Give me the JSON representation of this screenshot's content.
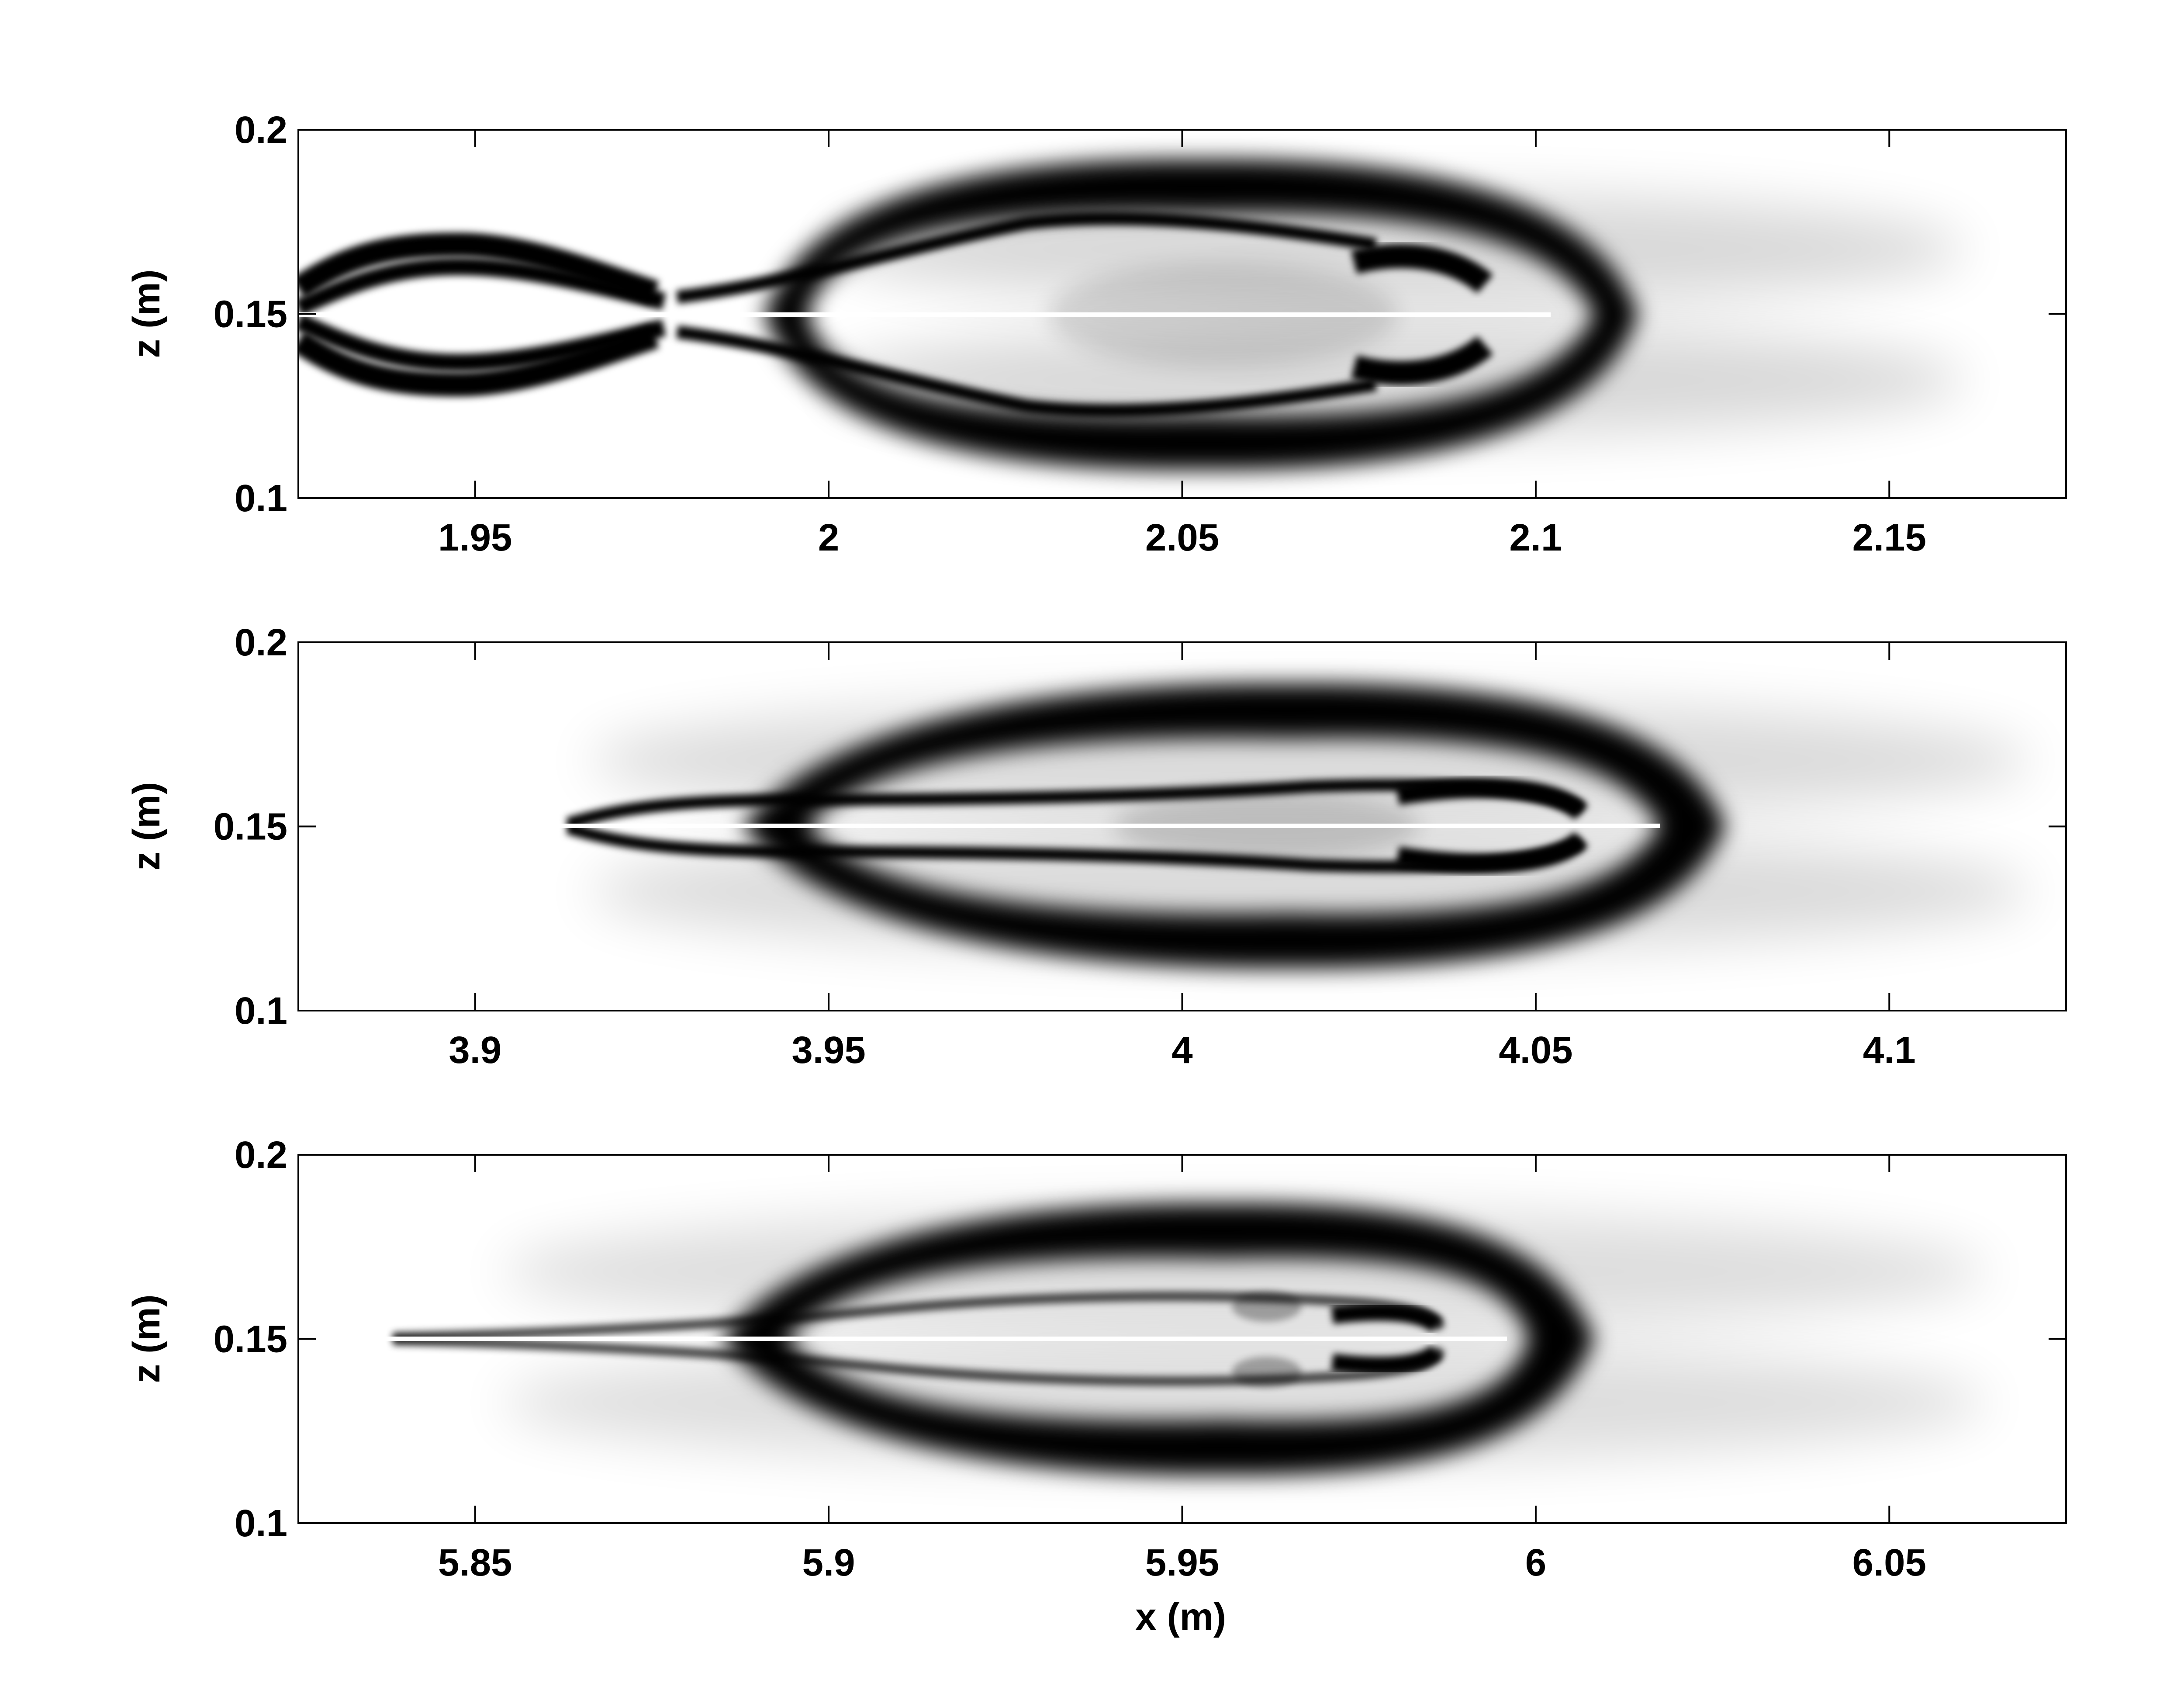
{
  "chart_data": [
    {
      "type": "heatmap",
      "xlim": [
        1.925,
        2.175
      ],
      "ylim": [
        0.1,
        0.2
      ],
      "xticks": [
        "1.95",
        "2",
        "2.05",
        "2.1",
        "2.15"
      ],
      "yticks": [
        "0.1",
        "0.15",
        "0.2"
      ],
      "ylabel": "z (m)",
      "xlabel": "",
      "grid": false,
      "colormap": "grayscale (white low, black high)",
      "center": {
        "x": 2.05,
        "z": 0.15
      },
      "outer_band": {
        "x_start": 1.995,
        "x_end": 2.115,
        "z_center_offset": 0.037
      },
      "inner_front": {
        "x": 2.09
      },
      "left_lobes": {
        "x_start": 1.925,
        "x_end": 1.98,
        "z_offset": 0.015
      }
    },
    {
      "type": "heatmap",
      "xlim": [
        3.875,
        4.125
      ],
      "ylim": [
        0.1,
        0.2
      ],
      "xticks": [
        "3.9",
        "3.95",
        "4",
        "4.05",
        "4.1"
      ],
      "yticks": [
        "0.1",
        "0.15",
        "0.2"
      ],
      "ylabel": "z (m)",
      "xlabel": "",
      "grid": false,
      "colormap": "grayscale (white low, black high)",
      "center": {
        "x": 4.0,
        "z": 0.15
      },
      "outer_band": {
        "x_start": 3.96,
        "x_end": 4.07,
        "z_center_offset": 0.03
      },
      "inner_front": {
        "x": 4.055
      },
      "tail_tip": {
        "x": 3.915
      }
    },
    {
      "type": "heatmap",
      "xlim": [
        5.825,
        6.075
      ],
      "ylim": [
        0.1,
        0.2
      ],
      "xticks": [
        "5.85",
        "5.9",
        "5.95",
        "6",
        "6.05"
      ],
      "yticks": [
        "0.1",
        "0.15",
        "0.2"
      ],
      "ylabel": "z (m)",
      "xlabel": "x (m)",
      "grid": false,
      "colormap": "grayscale (white low, black high)",
      "center": {
        "x": 5.95,
        "z": 0.15
      },
      "outer_band": {
        "x_start": 5.9,
        "x_end": 6.0,
        "z_center_offset": 0.028
      },
      "inner_front": {
        "x": 5.98
      },
      "tail_tip": {
        "x": 5.835
      }
    }
  ]
}
